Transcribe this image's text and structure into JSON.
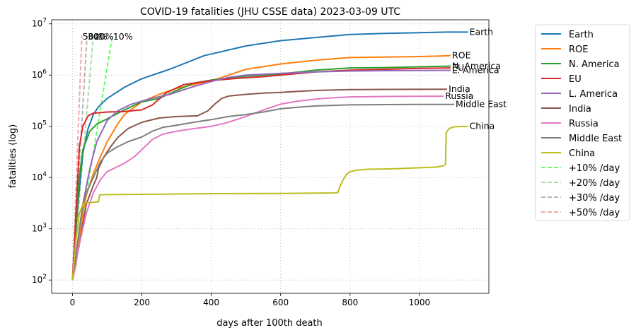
{
  "chart_data": {
    "type": "line",
    "title": "COVID-19 fatalities (JHU CSSE data) 2023-03-09 UTC",
    "xlabel": "days after 100th death",
    "ylabel": "fatalities (log)",
    "xlim": [
      -60,
      1200
    ],
    "ylim": [
      55,
      12000000
    ],
    "yscale": "log",
    "grid": true,
    "legend_position": "outside-right",
    "x_ticks": [
      0,
      200,
      400,
      600,
      800,
      1000
    ],
    "y_ticks": [
      {
        "value": 100,
        "base": "10",
        "exp": "2"
      },
      {
        "value": 1000,
        "base": "10",
        "exp": "3"
      },
      {
        "value": 10000,
        "base": "10",
        "exp": "4"
      },
      {
        "value": 100000,
        "base": "10",
        "exp": "5"
      },
      {
        "value": 1000000,
        "base": "10",
        "exp": "6"
      },
      {
        "value": 10000000,
        "base": "10",
        "exp": "7"
      }
    ],
    "series": [
      {
        "name": "Earth",
        "color": "#1f77b4",
        "end_label": "Earth",
        "points": [
          [
            0,
            100
          ],
          [
            5,
            300
          ],
          [
            10,
            1000
          ],
          [
            20,
            6000
          ],
          [
            30,
            30000
          ],
          [
            45,
            90000
          ],
          [
            60,
            170000
          ],
          [
            75,
            240000
          ],
          [
            100,
            350000
          ],
          [
            150,
            580000
          ],
          [
            200,
            850000
          ],
          [
            280,
            1300000
          ],
          [
            380,
            2400000
          ],
          [
            500,
            3700000
          ],
          [
            600,
            4700000
          ],
          [
            700,
            5400000
          ],
          [
            800,
            6200000
          ],
          [
            900,
            6500000
          ],
          [
            1000,
            6700000
          ],
          [
            1080,
            6900000
          ],
          [
            1140,
            6900000
          ]
        ]
      },
      {
        "name": "ROE",
        "color": "#ff7f0e",
        "end_label": "ROE",
        "points": [
          [
            0,
            100
          ],
          [
            10,
            200
          ],
          [
            20,
            600
          ],
          [
            30,
            2000
          ],
          [
            40,
            4500
          ],
          [
            60,
            12000
          ],
          [
            80,
            25000
          ],
          [
            100,
            50000
          ],
          [
            130,
            110000
          ],
          [
            150,
            170000
          ],
          [
            200,
            300000
          ],
          [
            250,
            420000
          ],
          [
            300,
            550000
          ],
          [
            350,
            650000
          ],
          [
            420,
            850000
          ],
          [
            500,
            1300000
          ],
          [
            600,
            1650000
          ],
          [
            700,
            1950000
          ],
          [
            800,
            2200000
          ],
          [
            900,
            2250000
          ],
          [
            1000,
            2300000
          ],
          [
            1060,
            2350000
          ],
          [
            1090,
            2400000
          ]
        ]
      },
      {
        "name": "N. America",
        "color": "#2ca02c",
        "end_label": "N. America",
        "points": [
          [
            0,
            100
          ],
          [
            5,
            300
          ],
          [
            10,
            1000
          ],
          [
            20,
            10000
          ],
          [
            30,
            35000
          ],
          [
            50,
            80000
          ],
          [
            70,
            110000
          ],
          [
            100,
            140000
          ],
          [
            150,
            210000
          ],
          [
            200,
            300000
          ],
          [
            250,
            350000
          ],
          [
            300,
            500000
          ],
          [
            350,
            700000
          ],
          [
            400,
            800000
          ],
          [
            500,
            950000
          ],
          [
            600,
            1050000
          ],
          [
            700,
            1250000
          ],
          [
            800,
            1380000
          ],
          [
            900,
            1400000
          ],
          [
            1000,
            1450000
          ],
          [
            1090,
            1500000
          ]
        ]
      },
      {
        "name": "EU",
        "color": "#d62728",
        "end_label": "EU",
        "points": [
          [
            0,
            100
          ],
          [
            5,
            400
          ],
          [
            10,
            2000
          ],
          [
            15,
            9000
          ],
          [
            20,
            40000
          ],
          [
            30,
            100000
          ],
          [
            45,
            160000
          ],
          [
            60,
            180000
          ],
          [
            100,
            190000
          ],
          [
            150,
            195000
          ],
          [
            200,
            210000
          ],
          [
            230,
            260000
          ],
          [
            270,
            450000
          ],
          [
            320,
            650000
          ],
          [
            400,
            780000
          ],
          [
            480,
            870000
          ],
          [
            550,
            930000
          ],
          [
            600,
            1000000
          ],
          [
            700,
            1150000
          ],
          [
            800,
            1250000
          ],
          [
            900,
            1300000
          ],
          [
            1000,
            1350000
          ],
          [
            1090,
            1380000
          ]
        ]
      },
      {
        "name": "L. America",
        "color": "#9467bd",
        "end_label": "L. America",
        "points": [
          [
            0,
            100
          ],
          [
            10,
            300
          ],
          [
            20,
            1000
          ],
          [
            30,
            3000
          ],
          [
            50,
            15000
          ],
          [
            70,
            50000
          ],
          [
            100,
            130000
          ],
          [
            130,
            200000
          ],
          [
            170,
            270000
          ],
          [
            220,
            340000
          ],
          [
            280,
            420000
          ],
          [
            340,
            570000
          ],
          [
            400,
            750000
          ],
          [
            450,
            900000
          ],
          [
            500,
            1000000
          ],
          [
            600,
            1080000
          ],
          [
            700,
            1150000
          ],
          [
            800,
            1200000
          ],
          [
            900,
            1220000
          ],
          [
            1000,
            1230000
          ],
          [
            1090,
            1240000
          ]
        ]
      },
      {
        "name": "India",
        "color": "#8c564b",
        "end_label": "India",
        "points": [
          [
            0,
            100
          ],
          [
            20,
            500
          ],
          [
            40,
            3000
          ],
          [
            60,
            7000
          ],
          [
            70,
            10000
          ],
          [
            75,
            15000
          ],
          [
            90,
            25000
          ],
          [
            110,
            40000
          ],
          [
            130,
            60000
          ],
          [
            160,
            90000
          ],
          [
            200,
            120000
          ],
          [
            250,
            145000
          ],
          [
            300,
            155000
          ],
          [
            360,
            160000
          ],
          [
            390,
            200000
          ],
          [
            410,
            270000
          ],
          [
            430,
            350000
          ],
          [
            450,
            390000
          ],
          [
            500,
            420000
          ],
          [
            550,
            445000
          ],
          [
            600,
            460000
          ],
          [
            650,
            480000
          ],
          [
            700,
            500000
          ],
          [
            800,
            520000
          ],
          [
            900,
            525000
          ],
          [
            1000,
            527000
          ],
          [
            1080,
            530000
          ]
        ]
      },
      {
        "name": "Russia",
        "color": "#e377c2",
        "end_label": "Russia",
        "points": [
          [
            0,
            100
          ],
          [
            20,
            500
          ],
          [
            40,
            2000
          ],
          [
            60,
            5000
          ],
          [
            80,
            9000
          ],
          [
            100,
            13000
          ],
          [
            150,
            19000
          ],
          [
            180,
            26000
          ],
          [
            200,
            35000
          ],
          [
            230,
            55000
          ],
          [
            260,
            70000
          ],
          [
            300,
            80000
          ],
          [
            350,
            90000
          ],
          [
            400,
            100000
          ],
          [
            440,
            115000
          ],
          [
            480,
            140000
          ],
          [
            520,
            175000
          ],
          [
            560,
            220000
          ],
          [
            600,
            270000
          ],
          [
            650,
            310000
          ],
          [
            700,
            340000
          ],
          [
            750,
            360000
          ],
          [
            800,
            375000
          ],
          [
            900,
            382000
          ],
          [
            1000,
            385000
          ],
          [
            1070,
            387000
          ]
        ]
      },
      {
        "name": "Middle East",
        "color": "#7f7f7f",
        "end_label": "Middle East",
        "points": [
          [
            0,
            100
          ],
          [
            10,
            300
          ],
          [
            20,
            1000
          ],
          [
            30,
            3000
          ],
          [
            40,
            5000
          ],
          [
            60,
            10000
          ],
          [
            80,
            20000
          ],
          [
            100,
            30000
          ],
          [
            130,
            40000
          ],
          [
            160,
            50000
          ],
          [
            200,
            62000
          ],
          [
            230,
            80000
          ],
          [
            260,
            95000
          ],
          [
            300,
            105000
          ],
          [
            350,
            120000
          ],
          [
            400,
            135000
          ],
          [
            450,
            155000
          ],
          [
            500,
            170000
          ],
          [
            550,
            190000
          ],
          [
            600,
            220000
          ],
          [
            650,
            235000
          ],
          [
            700,
            250000
          ],
          [
            800,
            262000
          ],
          [
            900,
            265000
          ],
          [
            1000,
            267000
          ],
          [
            1100,
            268000
          ]
        ]
      },
      {
        "name": "China",
        "color": "#bcbd22",
        "end_label": "China",
        "points": [
          [
            0,
            100
          ],
          [
            10,
            600
          ],
          [
            20,
            2000
          ],
          [
            30,
            3000
          ],
          [
            40,
            3200
          ],
          [
            60,
            3300
          ],
          [
            75,
            3350
          ],
          [
            78,
            4600
          ],
          [
            100,
            4630
          ],
          [
            200,
            4700
          ],
          [
            400,
            4850
          ],
          [
            600,
            4900
          ],
          [
            750,
            5000
          ],
          [
            765,
            5100
          ],
          [
            770,
            6500
          ],
          [
            780,
            9000
          ],
          [
            790,
            11500
          ],
          [
            800,
            13000
          ],
          [
            820,
            14000
          ],
          [
            850,
            14500
          ],
          [
            900,
            14700
          ],
          [
            950,
            15000
          ],
          [
            1000,
            15500
          ],
          [
            1050,
            16000
          ],
          [
            1070,
            17000
          ],
          [
            1075,
            18000
          ],
          [
            1077,
            75000
          ],
          [
            1085,
            90000
          ],
          [
            1100,
            98000
          ],
          [
            1140,
            100000
          ]
        ]
      },
      {
        "name": "+10% /day",
        "color": "#66ff66",
        "dashed": true,
        "end_label": "10%",
        "points": [
          [
            0,
            100
          ],
          [
            115,
            5800000
          ]
        ]
      },
      {
        "name": "+20% /day",
        "color": "#a8dca8",
        "dashed": true,
        "end_label": "20%",
        "points": [
          [
            0,
            100
          ],
          [
            60,
            5800000
          ]
        ]
      },
      {
        "name": "+30% /day",
        "color": "#b4b4b4",
        "dashed": true,
        "end_label": "30%",
        "points": [
          [
            0,
            100
          ],
          [
            42,
            5800000
          ]
        ]
      },
      {
        "name": "+50% /day",
        "color": "#f0a8a8",
        "dashed": true,
        "end_label": "50%",
        "points": [
          [
            0,
            100
          ],
          [
            27,
            5800000
          ]
        ]
      }
    ]
  }
}
